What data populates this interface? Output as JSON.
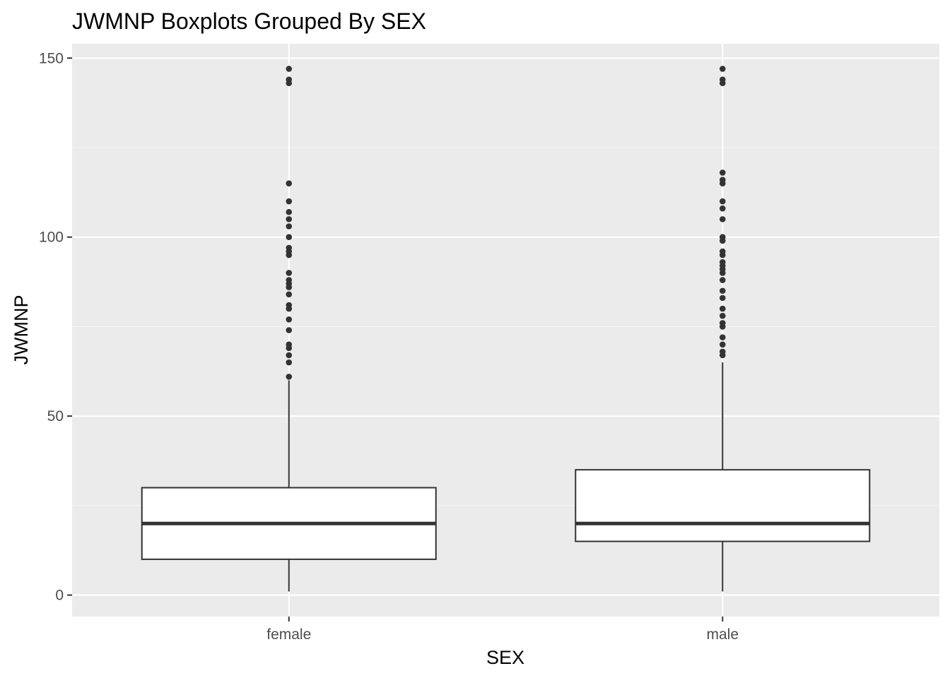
{
  "chart_data": {
    "type": "boxplot",
    "title": "JWMNP Boxplots Grouped By SEX",
    "xlabel": "SEX",
    "ylabel": "JWMNP",
    "ylim": [
      -6,
      154
    ],
    "y_ticks": [
      0,
      50,
      100,
      150
    ],
    "y_tick_labels": [
      "0",
      "50",
      "100",
      "150"
    ],
    "grid": true,
    "categories": [
      "female",
      "male"
    ],
    "boxes": [
      {
        "category": "female",
        "whisker_low": 1,
        "q1": 10,
        "median": 20,
        "q3": 30,
        "whisker_high": 60,
        "outliers": [
          61,
          65,
          67,
          69,
          70,
          74,
          77,
          80,
          81,
          84,
          86,
          87,
          88,
          90,
          95,
          96,
          97,
          100,
          103,
          105,
          107,
          110,
          115,
          143,
          144,
          147
        ]
      },
      {
        "category": "male",
        "whisker_low": 1,
        "q1": 15,
        "median": 20,
        "q3": 35,
        "whisker_high": 65,
        "outliers": [
          67,
          68,
          70,
          72,
          75,
          76,
          78,
          80,
          83,
          85,
          88,
          90,
          91,
          92,
          93,
          95,
          96,
          99,
          100,
          105,
          108,
          110,
          115,
          116,
          118,
          143,
          144,
          147
        ]
      }
    ],
    "colors": {
      "panel_background": "#ebebeb",
      "grid_major": "#ffffff",
      "grid_minor": "#f5f5f5",
      "box_fill": "#ffffff",
      "box_stroke": "#333333",
      "outlier": "#333333",
      "tick_label": "#4d4d4d",
      "tick_mark": "#333333"
    }
  }
}
